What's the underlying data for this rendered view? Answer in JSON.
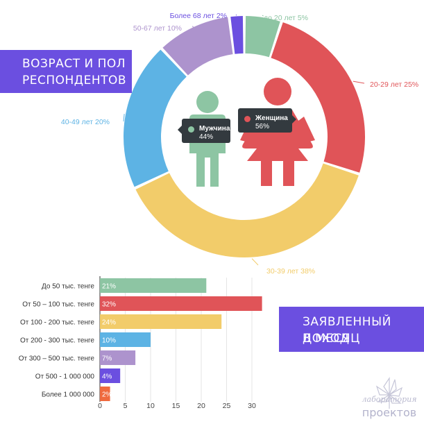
{
  "titles": {
    "age": [
      "ВОЗРАСТ И ПОЛ",
      "РЕСПОНДЕНТОВ"
    ],
    "income": [
      "ЗАЯВЛЕННЫЙ ДОХОД",
      "В МЕСЯЦ"
    ]
  },
  "gender": {
    "male": {
      "label": "Мужчина",
      "value": "44%",
      "color": "#8dc5a3"
    },
    "female": {
      "label": "Женщина",
      "value": "56%",
      "color": "#e05458"
    }
  },
  "logo": {
    "line1": "лаборатория",
    "line2": "проектов"
  },
  "chart_data": [
    {
      "type": "pie",
      "donut": true,
      "categories": [
        "до 20 лет",
        "20-29 лет",
        "30-39 лет",
        "40-49 лет",
        "50-67 лет",
        "Более 68 лет"
      ],
      "values": [
        5,
        25,
        38,
        20,
        10,
        2
      ],
      "labels": [
        "до 20 лет 5%",
        "20-29 лет 25%",
        "30-39 лет 38%",
        "40-49 лет 20%",
        "50-67 лет 10%",
        "Более 68 лет 2%"
      ],
      "colors": [
        "#8dc5a3",
        "#e05458",
        "#f2cc6a",
        "#5db3e4",
        "#ad93cd",
        "#6b4fe0"
      ]
    },
    {
      "type": "bar",
      "orientation": "horizontal",
      "categories": [
        "До 50 тыс. тенге",
        "От 50 – 100 тыс. тенге",
        "От 100 - 200 тыс. тенге",
        "От 200 - 300 тыс. тенге",
        "От 300 – 500 тыс. тенге",
        "От 500 - 1 000 000",
        "Более 1 000 000"
      ],
      "values": [
        21,
        32,
        24,
        10,
        7,
        4,
        2
      ],
      "data_labels": [
        "21%",
        "32%",
        "24%",
        "10%",
        "7%",
        "4%",
        "2%"
      ],
      "colors": [
        "#8dc5a3",
        "#e05458",
        "#f2cc6a",
        "#5db3e4",
        "#ad93cd",
        "#6b4fe0",
        "#ef6a3e"
      ],
      "xlim": [
        0,
        35
      ],
      "xticks": [
        0,
        5,
        10,
        15,
        20,
        25,
        30
      ],
      "grid": true
    }
  ]
}
